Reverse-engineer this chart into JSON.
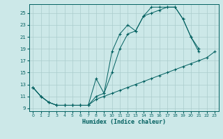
{
  "xlabel": "Humidex (Indice chaleur)",
  "ylabel": "",
  "bg_color": "#cce8e8",
  "grid_color": "#aacccc",
  "line_color": "#005f5f",
  "xlim": [
    -0.5,
    23.5
  ],
  "ylim": [
    8.5,
    26.5
  ],
  "yticks": [
    9,
    11,
    13,
    15,
    17,
    19,
    21,
    23,
    25
  ],
  "xticks": [
    0,
    1,
    2,
    3,
    4,
    5,
    6,
    7,
    8,
    9,
    10,
    11,
    12,
    13,
    14,
    15,
    16,
    17,
    18,
    19,
    20,
    21,
    22,
    23
  ],
  "line1_x": [
    0,
    1,
    2,
    3,
    4,
    5,
    6,
    7,
    8,
    9,
    10,
    11,
    12,
    13,
    14,
    15,
    16,
    17,
    18,
    19,
    20,
    21
  ],
  "line1_y": [
    12.5,
    11.0,
    10.0,
    9.5,
    9.5,
    9.5,
    9.5,
    9.5,
    14.0,
    11.5,
    18.5,
    21.5,
    23.0,
    22.0,
    24.5,
    26.0,
    26.0,
    26.0,
    26.0,
    24.0,
    21.0,
    19.0
  ],
  "line2_x": [
    0,
    1,
    2,
    3,
    4,
    5,
    6,
    7,
    8,
    9,
    10,
    11,
    12,
    13,
    14,
    15,
    16,
    17,
    18,
    19,
    20,
    21
  ],
  "line2_y": [
    12.5,
    11.0,
    10.0,
    9.5,
    9.5,
    9.5,
    9.5,
    9.5,
    11.0,
    11.5,
    15.0,
    19.0,
    21.5,
    22.0,
    24.5,
    25.0,
    25.5,
    26.0,
    26.0,
    24.0,
    21.0,
    18.5
  ],
  "line3_x": [
    0,
    1,
    2,
    3,
    4,
    5,
    6,
    7,
    8,
    9,
    10,
    11,
    12,
    13,
    14,
    15,
    16,
    17,
    18,
    19,
    20,
    21,
    22,
    23
  ],
  "line3_y": [
    12.5,
    11.0,
    10.0,
    9.5,
    9.5,
    9.5,
    9.5,
    9.5,
    10.5,
    11.0,
    11.5,
    12.0,
    12.5,
    13.0,
    13.5,
    14.0,
    14.5,
    15.0,
    15.5,
    16.0,
    16.5,
    17.0,
    17.5,
    18.5
  ]
}
